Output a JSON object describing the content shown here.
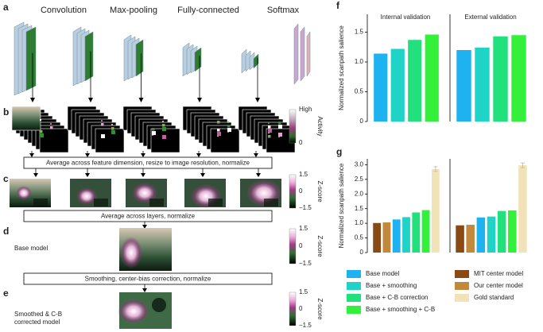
{
  "panel_labels": [
    "a",
    "b",
    "c",
    "d",
    "e",
    "f",
    "g"
  ],
  "layer_types": [
    {
      "name": "Convolution",
      "color": "#b9cfe0"
    },
    {
      "name": "Max-pooling",
      "color": "#2e7d32"
    },
    {
      "name": "Fully-connected",
      "color": "#c9a8cc"
    },
    {
      "name": "Softmax",
      "color": "#e2b2b2"
    }
  ],
  "steps": [
    "Average across feature dimension, resize to image resolution, normalize",
    "Average across layers, normalize",
    "Smoothing, center-bias correction, normalize"
  ],
  "colorbars": [
    {
      "labels": [
        "High",
        "0"
      ],
      "title": "Activity"
    },
    {
      "labels": [
        "1.5",
        "0",
        "−1.5"
      ],
      "title": "Z-score"
    },
    {
      "labels": [
        "1.5",
        "0",
        "−1.5"
      ],
      "title": "Z-score"
    },
    {
      "labels": [
        "1.5",
        "0",
        "−1.5"
      ],
      "title": "Z-score"
    }
  ],
  "model_labels": {
    "base": "Base model",
    "smoothed": [
      "Smoothed & C-B",
      "corrected model"
    ]
  },
  "legend": [
    {
      "name": "Base model",
      "color": "#1eb2f0"
    },
    {
      "name": "Base + smoothing",
      "color": "#1fd4c6"
    },
    {
      "name": "Base + C-B correction",
      "color": "#22e07c"
    },
    {
      "name": "Base + smoothing + C-B",
      "color": "#33f03a"
    },
    {
      "name": "MIT center model",
      "color": "#8a4a14"
    },
    {
      "name": "Our center model",
      "color": "#c2893c"
    },
    {
      "name": "Gold standard",
      "color": "#f2e2b8"
    }
  ],
  "chart_data": [
    {
      "type": "bar",
      "title": "Internal validation",
      "ylabel": "Normalized scanpath salience",
      "values": [
        1.14,
        1.22,
        1.37,
        1.46
      ],
      "colors": [
        "#1eb2f0",
        "#1fd4c6",
        "#22e07c",
        "#33f03a"
      ],
      "ylim": [
        0,
        1.8
      ],
      "yticks": [
        0,
        0.5,
        {
          "value": 1,
          "label": "1.0"
        },
        1.5
      ]
    },
    {
      "type": "bar",
      "title": "External validation",
      "values": [
        1.2,
        1.24,
        1.43,
        1.45
      ],
      "colors": [
        "#1eb2f0",
        "#1fd4c6",
        "#22e07c",
        "#33f03a"
      ],
      "ylim": [
        0,
        1.8
      ]
    },
    {
      "type": "bar",
      "ylabel": "Normalized scanpath salience",
      "values": [
        1.01,
        1.03,
        1.13,
        1.21,
        1.37,
        1.45,
        2.85
      ],
      "errors": [
        null,
        null,
        null,
        null,
        null,
        null,
        0.08
      ],
      "colors": [
        "#8a4a14",
        "#c2893c",
        "#1eb2f0",
        "#1fd4c6",
        "#22e07c",
        "#33f03a",
        "#f2e2b8"
      ],
      "ylim": [
        0,
        3.2
      ],
      "yticks": [
        0,
        0.5,
        {
          "value": 1,
          "label": "1.0"
        },
        1.5,
        {
          "value": 2,
          "label": "2.0"
        },
        2.5,
        {
          "value": 3,
          "label": "3.0"
        }
      ]
    },
    {
      "type": "bar",
      "values": [
        0.93,
        0.95,
        1.2,
        1.23,
        1.42,
        1.44,
        2.98
      ],
      "errors": [
        null,
        null,
        null,
        null,
        null,
        null,
        0.08
      ],
      "colors": [
        "#8a4a14",
        "#c2893c",
        "#1eb2f0",
        "#1fd4c6",
        "#22e07c",
        "#33f03a",
        "#f2e2b8"
      ],
      "ylim": [
        0,
        3.2
      ]
    }
  ]
}
